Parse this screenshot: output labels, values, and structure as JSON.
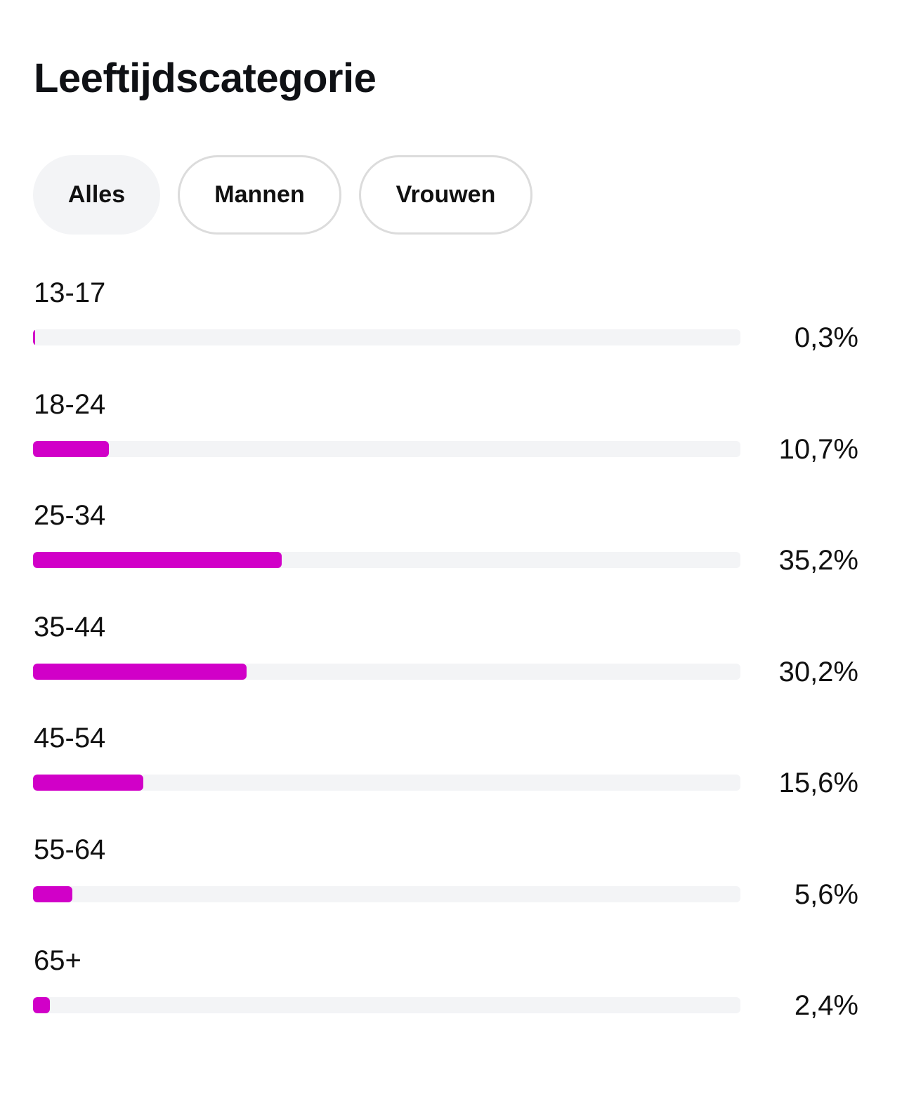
{
  "header": {
    "title": "Leeftijdscategorie"
  },
  "filters": [
    {
      "label": "Alles",
      "active": true
    },
    {
      "label": "Mannen",
      "active": false
    },
    {
      "label": "Vrouwen",
      "active": false
    }
  ],
  "colors": {
    "bar": "#d100c8",
    "track": "#f3f4f6"
  },
  "chart_data": {
    "type": "bar",
    "orientation": "horizontal",
    "title": "Leeftijdscategorie",
    "categories": [
      "13-17",
      "18-24",
      "25-34",
      "35-44",
      "45-54",
      "55-64",
      "65+"
    ],
    "values": [
      0.3,
      10.7,
      35.2,
      30.2,
      15.6,
      5.6,
      2.4
    ],
    "value_labels": [
      "0,3%",
      "10,7%",
      "35,2%",
      "30,2%",
      "15,6%",
      "5,6%",
      "2,4%"
    ],
    "xlim": [
      0,
      100
    ],
    "unit": "%"
  }
}
